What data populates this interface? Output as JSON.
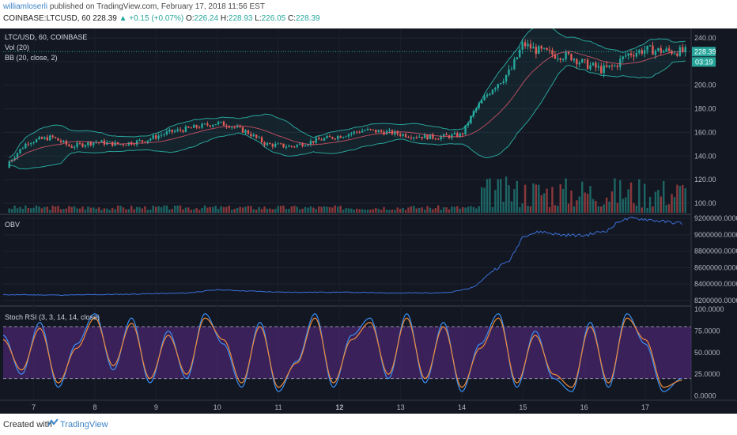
{
  "header": {
    "publisher": "williamloserli",
    "published_text": "published on TradingView.com, February 17, 2018 11:56 EST",
    "symbol": "COINBASE:LTCUSD, 60",
    "last": "228.39",
    "change": "▲ +0.15 (+0.07%)",
    "o_label": "O:",
    "o_val": "226.24",
    "h_label": "H:",
    "h_val": "228.93",
    "l_label": "L:",
    "l_val": "226.05",
    "c_label": "C:",
    "c_val": "228.39"
  },
  "panes": {
    "main_title": "LTC/USD, 60, COINBASE",
    "vol_label": "Vol (20)",
    "bb_label": "BB (20, close, 2)",
    "obv_label": "OBV",
    "stoch_label": "Stoch RSI (3, 3, 14, 14, close)",
    "price_badge": "228.39",
    "timer_badge": "03:19"
  },
  "footer": {
    "created": "Created with",
    "brand": "TradingView"
  },
  "colors": {
    "bg": "#131722",
    "up": "#26a69a",
    "down": "#ef5350",
    "bb": "#2ec4b6",
    "obv": "#3a6fd8",
    "stoch_k": "#3a8ef0",
    "stoch_d": "#f08c3a",
    "band_fill": "#5b2a86"
  },
  "chart_data": [
    {
      "type": "candlestick",
      "title": "LTC/USD, 60, COINBASE",
      "x_ticks": [
        "7",
        "8",
        "9",
        "10",
        "11",
        "12",
        "13",
        "14",
        "15",
        "16",
        "17"
      ],
      "y_ticks": [
        "240.00",
        "220.00",
        "200.00",
        "180.00",
        "160.00",
        "140.00",
        "120.00",
        "100.00"
      ],
      "ylim": [
        92,
        248
      ],
      "close_path_days": [
        6.5,
        6.9,
        7.3,
        7.6,
        8.0,
        8.4,
        8.8,
        9.2,
        9.6,
        10.0,
        10.2,
        10.5,
        10.8,
        11.2,
        11.6,
        12.0,
        12.4,
        12.8,
        13.2,
        13.6,
        14.0,
        14.2,
        14.5,
        14.8,
        15.0,
        15.2,
        15.5,
        15.8,
        16.0,
        16.3,
        16.5,
        16.7,
        17.0,
        17.3,
        17.6
      ],
      "close_path_values": [
        130,
        152,
        156,
        148,
        152,
        150,
        153,
        160,
        164,
        168,
        166,
        160,
        150,
        148,
        153,
        157,
        162,
        160,
        157,
        156,
        158,
        178,
        198,
        212,
        235,
        230,
        226,
        224,
        218,
        213,
        216,
        226,
        230,
        229,
        228.39
      ],
      "last_price": 228.39
    },
    {
      "type": "line",
      "title": "OBV",
      "y_ticks": [
        "9200000.0000",
        "9000000.0000",
        "8800000.0000",
        "8600000.0000",
        "8400000.0000",
        "8200000.0000"
      ],
      "ylim": [
        8150000,
        9230000
      ],
      "days": [
        6.5,
        7.5,
        8.5,
        9.5,
        10.0,
        10.5,
        11.0,
        12.0,
        13.0,
        13.8,
        14.2,
        14.5,
        14.8,
        15.0,
        15.3,
        15.6,
        16.0,
        16.4,
        16.6,
        16.8,
        17.0,
        17.3,
        17.6
      ],
      "values": [
        8270000,
        8265000,
        8275000,
        8290000,
        8330000,
        8315000,
        8300000,
        8300000,
        8290000,
        8295000,
        8360000,
        8560000,
        8700000,
        8990000,
        9040000,
        9000000,
        8990000,
        9060000,
        9180000,
        9200000,
        9190000,
        9160000,
        9140000
      ]
    },
    {
      "type": "line",
      "title": "Stoch RSI (3, 3, 14, 14, close)",
      "y_ticks": [
        "100.0000",
        "75.0000",
        "50.0000",
        "25.0000",
        "0.0000"
      ],
      "ylim": [
        -5,
        102
      ],
      "band": [
        20,
        80
      ],
      "days": [
        6.5,
        6.8,
        7.1,
        7.4,
        7.7,
        8.0,
        8.3,
        8.6,
        8.9,
        9.2,
        9.5,
        9.8,
        10.1,
        10.4,
        10.7,
        11.0,
        11.3,
        11.6,
        11.9,
        12.2,
        12.5,
        12.8,
        13.1,
        13.4,
        13.7,
        14.0,
        14.3,
        14.6,
        14.9,
        15.2,
        15.5,
        15.8,
        16.1,
        16.4,
        16.7,
        17.0,
        17.3,
        17.6
      ],
      "series": [
        {
          "values": [
            70,
            25,
            85,
            10,
            60,
            95,
            30,
            90,
            15,
            75,
            20,
            95,
            60,
            10,
            85,
            5,
            40,
            95,
            10,
            70,
            90,
            20,
            95,
            15,
            85,
            5,
            60,
            95,
            10,
            75,
            20,
            5,
            85,
            10,
            95,
            60,
            5,
            20
          ]
        },
        {
          "values": [
            65,
            30,
            78,
            15,
            55,
            90,
            35,
            84,
            20,
            70,
            25,
            90,
            65,
            15,
            80,
            10,
            38,
            90,
            15,
            65,
            85,
            25,
            90,
            20,
            80,
            10,
            55,
            90,
            15,
            70,
            25,
            10,
            80,
            15,
            90,
            65,
            10,
            18
          ]
        }
      ]
    }
  ]
}
